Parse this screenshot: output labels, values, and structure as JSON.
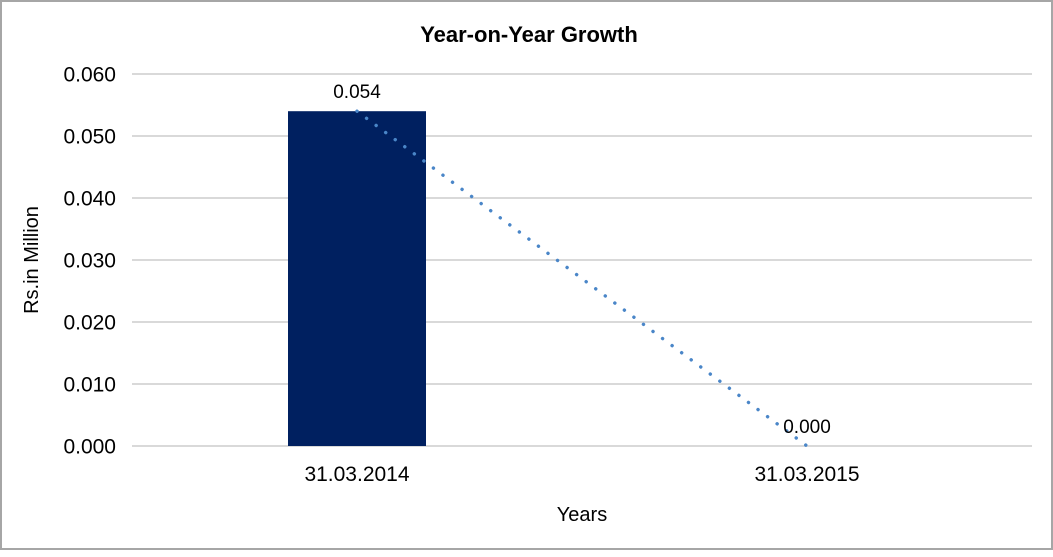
{
  "chart_data": {
    "type": "bar",
    "title": "Year-on-Year Growth",
    "categories": [
      "31.03.2014",
      "31.03.2015"
    ],
    "values": [
      0.054,
      0.0
    ],
    "data_labels": [
      "0.054",
      "0.000"
    ],
    "xlabel": "Years",
    "ylabel": "Rs.in Million",
    "ylim": [
      0,
      0.06
    ],
    "ytick_step": 0.01,
    "ytick_labels": [
      "0.000",
      "0.010",
      "0.020",
      "0.030",
      "0.040",
      "0.050",
      "0.060"
    ],
    "grid": "horizontal",
    "legend": "none",
    "trendline": {
      "style": "dotted",
      "from_category": "31.03.2014",
      "to_category": "31.03.2015",
      "color": "#4a86c8"
    },
    "colors": {
      "bar": "#002060",
      "title": "#ff0000",
      "gridline": "#d9d9d9",
      "text": "#000000",
      "border": "#a6a6a6",
      "background": "#ffffff"
    }
  }
}
